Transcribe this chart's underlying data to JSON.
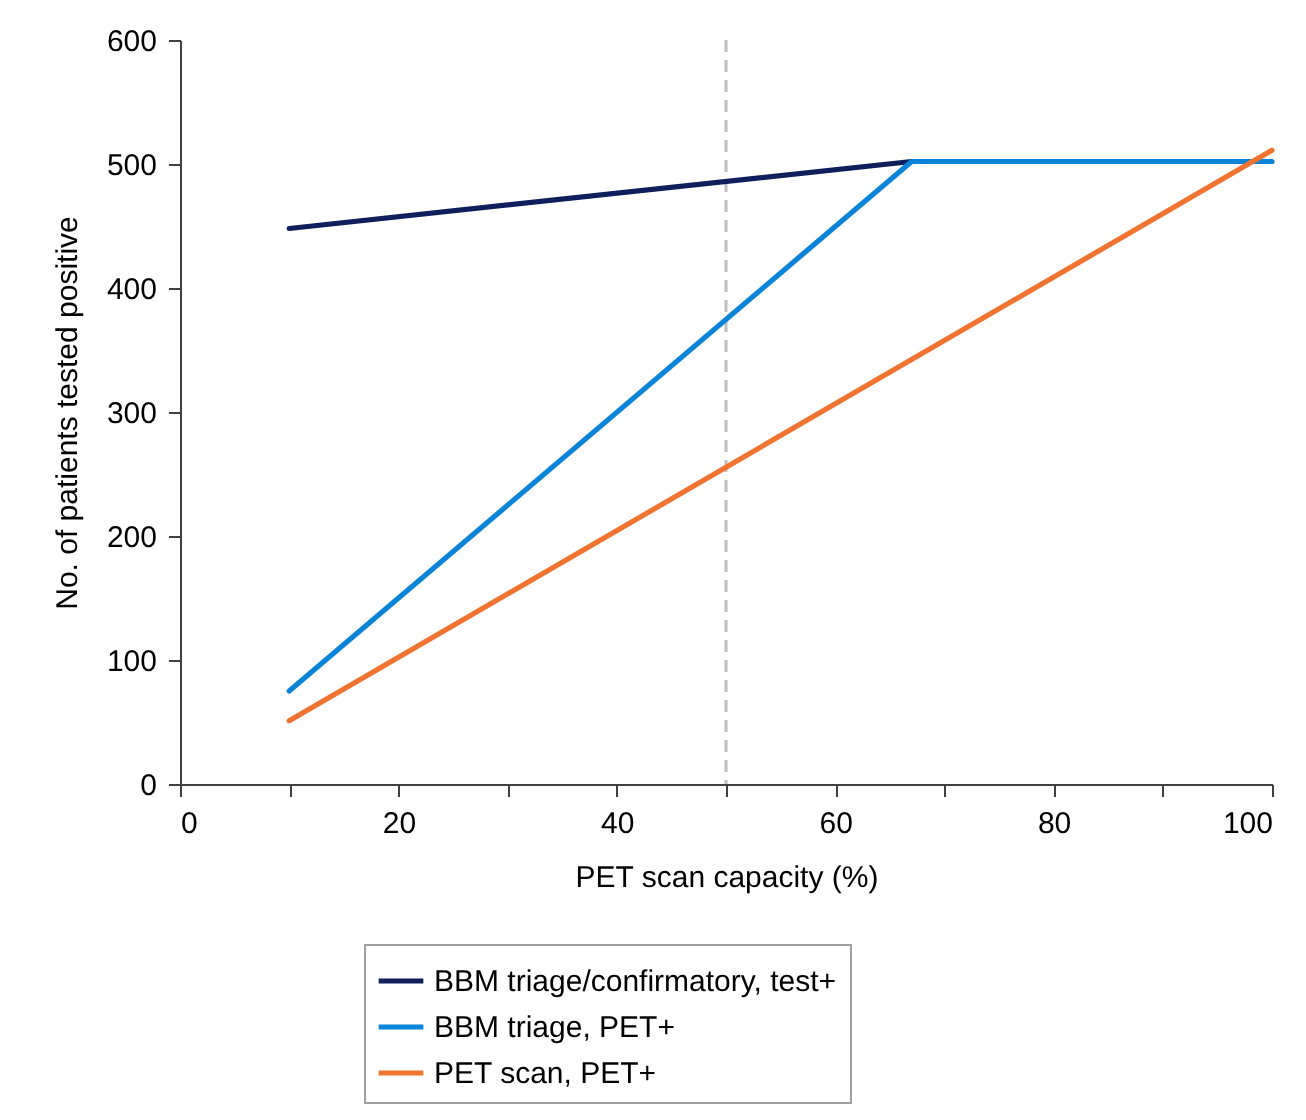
{
  "chart_data": {
    "type": "line",
    "xlabel": "PET scan capacity (%)",
    "ylabel": "No. of patients tested positive",
    "xlim": [
      0,
      100
    ],
    "xticks": [
      0,
      {
        "value": 10,
        "label": null
      },
      20,
      {
        "value": 30,
        "label": null
      },
      40,
      {
        "value": 50,
        "label": null
      },
      60,
      {
        "value": 70,
        "label": null
      },
      80,
      {
        "value": 90,
        "label": null
      },
      100
    ],
    "ylim": [
      0,
      600
    ],
    "yticks": [
      0,
      100,
      200,
      300,
      400,
      500,
      600
    ],
    "grid": false,
    "legend": "bottom",
    "marker": "none",
    "line_style": "solid",
    "ref_lines": [
      {
        "axis": "x",
        "value": 50,
        "color": "#bfbfbf",
        "line_style": "dashed"
      }
    ],
    "series": [
      {
        "name": "BBM triage/confirmatory, test+",
        "color": "#0e1f5b",
        "x": [
          10,
          67
        ],
        "values": [
          448,
          502
        ]
      },
      {
        "name": "BBM triage, PET+",
        "color": "#0a84d8",
        "x": [
          10,
          67,
          100
        ],
        "values": [
          75,
          502,
          502
        ]
      },
      {
        "name": "PET scan, PET+",
        "color": "#f07330",
        "x": [
          10,
          100
        ],
        "values": [
          51,
          511
        ]
      }
    ]
  }
}
